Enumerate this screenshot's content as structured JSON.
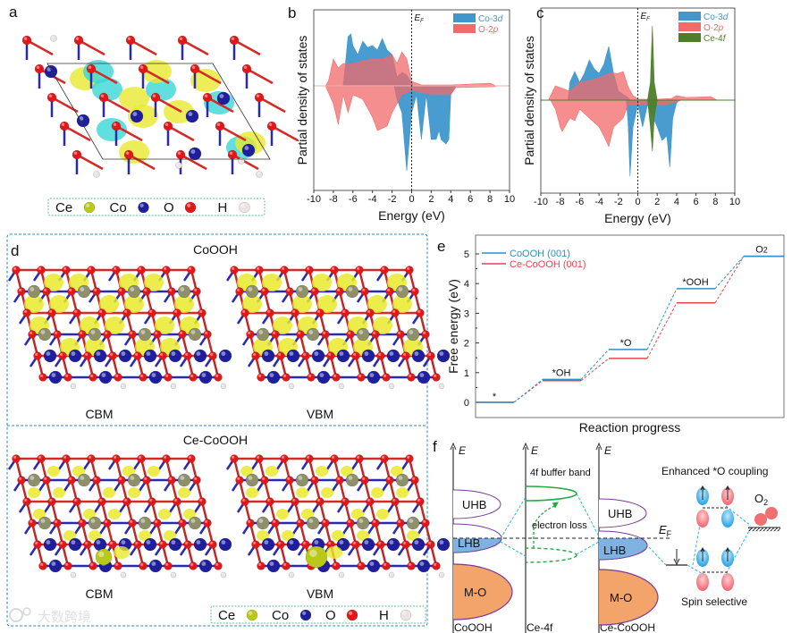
{
  "panels": {
    "a": {
      "label": "a"
    },
    "b": {
      "label": "b"
    },
    "c": {
      "label": "c"
    },
    "d": {
      "label": "d",
      "top_title": "CoOOH",
      "bottom_title": "Ce-CoOOH",
      "cbm": "CBM",
      "vbm": "VBM"
    },
    "e": {
      "label": "e"
    },
    "f": {
      "label": "f"
    }
  },
  "legend_atoms": [
    {
      "symbol": "Ce",
      "color": "#b8c91a"
    },
    {
      "symbol": "Co",
      "color": "#1a1a9a"
    },
    {
      "symbol": "O",
      "color": "#e01818"
    },
    {
      "symbol": "H",
      "color": "#e8e0e0"
    }
  ],
  "colors": {
    "co3d": "#3f97cc",
    "o2p": "#f26a6a",
    "ce4f": "#4d7f2a",
    "coooh_line": "#2f8fc4",
    "ce_line": "#e8454b"
  },
  "chart_data": [
    {
      "id": "b",
      "type": "area",
      "xlabel": "Energy (eV)",
      "ylabel": "Partial density of states",
      "xlim": [
        -10,
        10
      ],
      "xticks": [
        -10,
        -8,
        -6,
        -4,
        -2,
        0,
        2,
        4,
        6,
        8,
        10
      ],
      "ylim": [
        -11.7,
        8.5
      ],
      "fermi_label": "E",
      "fermi_sub": "F",
      "legend": [
        "Co-3d",
        "O-2p"
      ],
      "legend_placement": "top-right",
      "series": [
        {
          "name": "Co-3d",
          "up": [
            [
              -7,
              0
            ],
            [
              -6.8,
              2
            ],
            [
              -6.5,
              5.5
            ],
            [
              -6.2,
              5.8
            ],
            [
              -6,
              4.5
            ],
            [
              -5.5,
              3.5
            ],
            [
              -5,
              5
            ],
            [
              -4.5,
              4.3
            ],
            [
              -4,
              4.5
            ],
            [
              -3.5,
              4
            ],
            [
              -3,
              5.3
            ],
            [
              -2.5,
              4
            ],
            [
              -2,
              3.5
            ],
            [
              -1.5,
              1
            ],
            [
              -1,
              1.5
            ],
            [
              -0.5,
              1.2
            ],
            [
              0,
              0.3
            ],
            [
              0.2,
              0
            ]
          ],
          "down": [
            [
              -1.8,
              0
            ],
            [
              -1.5,
              -1.5
            ],
            [
              -1,
              -3
            ],
            [
              -0.5,
              -9.5
            ],
            [
              0,
              -3
            ],
            [
              0.5,
              -1
            ],
            [
              1,
              -6
            ],
            [
              1.5,
              -1
            ],
            [
              2,
              -6
            ],
            [
              2.5,
              -6
            ],
            [
              2.8,
              -5
            ],
            [
              3,
              -6
            ],
            [
              3.5,
              -6.5
            ],
            [
              3.8,
              -6
            ],
            [
              4,
              -1
            ],
            [
              4.5,
              0
            ]
          ]
        },
        {
          "name": "O-2p",
          "up": [
            [
              -8.8,
              0
            ],
            [
              -8.5,
              0.5
            ],
            [
              -8,
              3
            ],
            [
              -7.5,
              2
            ],
            [
              -7,
              2.5
            ],
            [
              -6,
              2.5
            ],
            [
              -5,
              2.8
            ],
            [
              -4,
              3
            ],
            [
              -3,
              3
            ],
            [
              -2,
              3.5
            ],
            [
              -1.5,
              2.5
            ],
            [
              -1,
              3.8
            ],
            [
              -0.5,
              3
            ],
            [
              0,
              0.5
            ],
            [
              1,
              0.1
            ],
            [
              4,
              0.1
            ],
            [
              6,
              0.2
            ],
            [
              8,
              0.3
            ],
            [
              8.6,
              0
            ]
          ],
          "down": [
            [
              -8.8,
              0
            ],
            [
              -8,
              -2
            ],
            [
              -7.5,
              -4.3
            ],
            [
              -7,
              -1
            ],
            [
              -6.5,
              -3
            ],
            [
              -6,
              -1
            ],
            [
              -5,
              -1.5
            ],
            [
              -4,
              -3.5
            ],
            [
              -3.5,
              -5
            ],
            [
              -2.5,
              -4.5
            ],
            [
              -2,
              -3
            ],
            [
              -1,
              -1
            ],
            [
              0,
              -0.5
            ],
            [
              2,
              -1
            ],
            [
              4,
              -1
            ],
            [
              4.5,
              -0.2
            ],
            [
              8.5,
              -0.1
            ],
            [
              8.7,
              0
            ]
          ]
        }
      ]
    },
    {
      "id": "c",
      "type": "area",
      "xlabel": "Energy (eV)",
      "ylabel": "Partial density of states",
      "xlim": [
        -10,
        10
      ],
      "xticks": [
        -10,
        -8,
        -6,
        -4,
        -2,
        0,
        2,
        4,
        6,
        8,
        10
      ],
      "ylim": [
        -10.4,
        10.3
      ],
      "fermi_label": "E",
      "fermi_sub": "F",
      "legend": [
        "Co-3d",
        "O-2p",
        "Ce-4f"
      ],
      "legend_placement": "top-right",
      "series": [
        {
          "name": "Co-3d",
          "up": [
            [
              -7.2,
              0
            ],
            [
              -7,
              2
            ],
            [
              -6.5,
              3.2
            ],
            [
              -6,
              2
            ],
            [
              -5.5,
              3
            ],
            [
              -5,
              4.5
            ],
            [
              -4.5,
              3.5
            ],
            [
              -4,
              3
            ],
            [
              -3.5,
              4
            ],
            [
              -3,
              6
            ],
            [
              -2.5,
              3
            ],
            [
              -2,
              1
            ],
            [
              -1,
              0.3
            ],
            [
              -0.8,
              0
            ]
          ],
          "down": [
            [
              -1.2,
              0
            ],
            [
              -1,
              -2.5
            ],
            [
              -0.8,
              -8.5
            ],
            [
              -0.5,
              -3
            ],
            [
              0,
              -0.5
            ],
            [
              0.5,
              -3
            ],
            [
              1,
              -0.5
            ],
            [
              2,
              -3
            ],
            [
              2.5,
              -4.5
            ],
            [
              3,
              -4
            ],
            [
              3.3,
              -7.5
            ],
            [
              3.6,
              -2
            ],
            [
              4,
              -0.3
            ],
            [
              4.3,
              0
            ]
          ]
        },
        {
          "name": "O-2p",
          "up": [
            [
              -9.2,
              0
            ],
            [
              -9,
              0.5
            ],
            [
              -8.5,
              1.6
            ],
            [
              -7,
              1
            ],
            [
              -6,
              2
            ],
            [
              -5,
              2.2
            ],
            [
              -4,
              2.5
            ],
            [
              -3,
              3
            ],
            [
              -2,
              3
            ],
            [
              -1.5,
              3.2
            ],
            [
              -1,
              1.5
            ],
            [
              -0.5,
              0.5
            ],
            [
              0,
              0.1
            ],
            [
              2,
              0.1
            ],
            [
              3.5,
              0.2
            ],
            [
              4,
              0.5
            ],
            [
              5,
              0.3
            ],
            [
              7.5,
              0.4
            ],
            [
              8,
              0.1
            ],
            [
              8.2,
              0
            ]
          ],
          "down": [
            [
              -9,
              0
            ],
            [
              -8.5,
              -1
            ],
            [
              -8,
              -3
            ],
            [
              -7.8,
              -3.5
            ],
            [
              -7,
              -2
            ],
            [
              -6.5,
              -2.3
            ],
            [
              -6,
              -1
            ],
            [
              -5,
              -2
            ],
            [
              -4,
              -3
            ],
            [
              -3.5,
              -4
            ],
            [
              -3,
              -5.2
            ],
            [
              -2.5,
              -3
            ],
            [
              -1.5,
              -2
            ],
            [
              -1,
              -0.5
            ],
            [
              0,
              -0.5
            ],
            [
              2,
              -0.5
            ],
            [
              3,
              -0.5
            ],
            [
              4,
              -0.2
            ],
            [
              4.5,
              0
            ]
          ]
        },
        {
          "name": "Ce-4f",
          "up": [
            [
              1,
              0
            ],
            [
              1.3,
              2
            ],
            [
              1.5,
              8.3
            ],
            [
              1.7,
              2
            ],
            [
              2,
              0
            ]
          ],
          "down": [
            [
              1,
              0
            ],
            [
              1.3,
              -3
            ],
            [
              1.5,
              -5.7
            ],
            [
              1.7,
              -2
            ],
            [
              2,
              0
            ]
          ]
        }
      ]
    },
    {
      "id": "e",
      "type": "line",
      "xlabel": "Reaction progress",
      "ylabel": "Free energy (eV)",
      "ylim": [
        -0.5,
        5.5
      ],
      "yticks": [
        0,
        1,
        2,
        3,
        4,
        5
      ],
      "steps": [
        "*",
        "*OH",
        "*O",
        "*OOH",
        "O2"
      ],
      "legend_placement": "top-left",
      "series": [
        {
          "name": "CoOOH (001)",
          "values": [
            0,
            0.77,
            1.78,
            3.83,
            4.92
          ]
        },
        {
          "name": "Ce-CoOOH (001)",
          "values": [
            0,
            0.73,
            1.48,
            3.35,
            4.92
          ]
        }
      ]
    }
  ],
  "diagram_f": {
    "axis_label": "E",
    "columns": [
      "CoOOH",
      "Ce-4f",
      "Ce-CoOOH"
    ],
    "uhb": "UHB",
    "lhb": "LHB",
    "mo": "M-O",
    "buffer_band": "4f buffer band",
    "electron_loss": "electron loss",
    "fermi": "E",
    "fermi_sub": "F",
    "coupling": "Enhanced *O coupling",
    "o2": "O",
    "o2_sub": "2",
    "spin": "Spin selective"
  },
  "watermark": "大数跨境"
}
